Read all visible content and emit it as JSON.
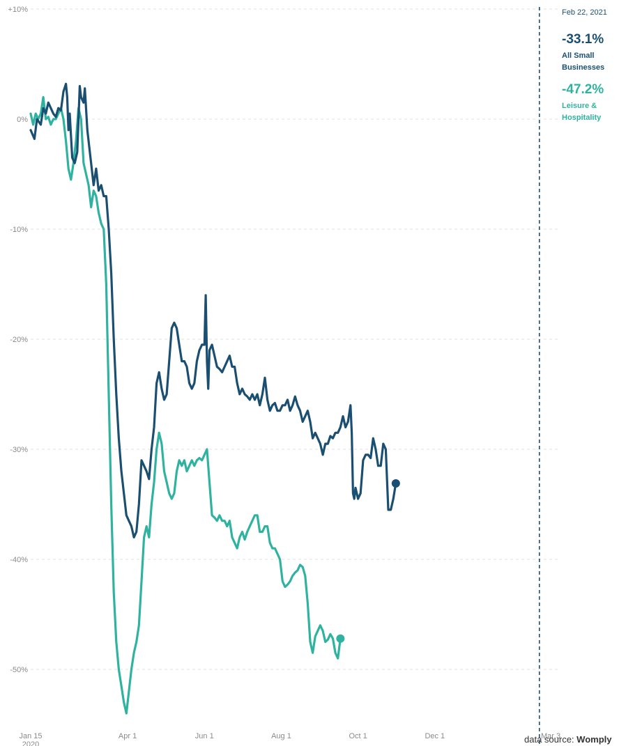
{
  "chart_data": {
    "type": "line",
    "y_ticks": [
      "+10%",
      "0%",
      "-10%",
      "-20%",
      "-30%",
      "-40%",
      "-50%"
    ],
    "y_tick_values": [
      10,
      0,
      -10,
      -20,
      -30,
      -40,
      -50
    ],
    "ylim": [
      -55,
      10
    ],
    "x_ticks": [
      "Jan 15",
      "Apr 1",
      "Jun 1",
      "Aug 1",
      "Oct 1",
      "Dec 1",
      "Mar 3"
    ],
    "x_tick_days": [
      0,
      77,
      138,
      199,
      260,
      321,
      413
    ],
    "x_tick_sub": {
      "Jan 15": "2020"
    },
    "xlim_days": [
      0,
      413
    ],
    "x_start_date": "2020-01-15",
    "grid": true,
    "marker": {
      "label": "Feb 22, 2021",
      "day": 404
    },
    "series": [
      {
        "name": "All Small Businesses",
        "color": "#1b4f72",
        "final_value_label": "-33.1%",
        "points": [
          [
            0,
            -1
          ],
          [
            3,
            -1.8
          ],
          [
            5,
            0
          ],
          [
            8,
            -0.5
          ],
          [
            10,
            1
          ],
          [
            12,
            0.5
          ],
          [
            14,
            1.5
          ],
          [
            16,
            1
          ],
          [
            18,
            0.5
          ],
          [
            20,
            0.2
          ],
          [
            22,
            1
          ],
          [
            24,
            0.8
          ],
          [
            26,
            2.5
          ],
          [
            28,
            3.2
          ],
          [
            29,
            2
          ],
          [
            30,
            -1
          ],
          [
            31,
            0.5
          ],
          [
            33,
            -3.5
          ],
          [
            35,
            -4
          ],
          [
            37,
            -3
          ],
          [
            39,
            3
          ],
          [
            40,
            2
          ],
          [
            42,
            1.5
          ],
          [
            43,
            2.8
          ],
          [
            45,
            -1
          ],
          [
            47,
            -3
          ],
          [
            48,
            -4
          ],
          [
            50,
            -6
          ],
          [
            52,
            -4.5
          ],
          [
            54,
            -6.5
          ],
          [
            56,
            -6
          ],
          [
            58,
            -7
          ],
          [
            60,
            -7
          ],
          [
            62,
            -10
          ],
          [
            64,
            -14
          ],
          [
            66,
            -20
          ],
          [
            68,
            -25
          ],
          [
            70,
            -29
          ],
          [
            72,
            -32
          ],
          [
            74,
            -34
          ],
          [
            76,
            -36
          ],
          [
            78,
            -36.5
          ],
          [
            80,
            -37
          ],
          [
            82,
            -38
          ],
          [
            84,
            -37.5
          ],
          [
            86,
            -35
          ],
          [
            88,
            -31
          ],
          [
            90,
            -31.5
          ],
          [
            92,
            -32
          ],
          [
            94,
            -32.7
          ],
          [
            96,
            -30
          ],
          [
            98,
            -28
          ],
          [
            100,
            -24
          ],
          [
            102,
            -23
          ],
          [
            104,
            -24.5
          ],
          [
            106,
            -25.5
          ],
          [
            108,
            -25
          ],
          [
            110,
            -22
          ],
          [
            112,
            -19
          ],
          [
            114,
            -18.5
          ],
          [
            116,
            -19
          ],
          [
            118,
            -20.5
          ],
          [
            120,
            -22
          ],
          [
            122,
            -22
          ],
          [
            124,
            -22.5
          ],
          [
            126,
            -24
          ],
          [
            128,
            -24.5
          ],
          [
            130,
            -24
          ],
          [
            132,
            -22
          ],
          [
            134,
            -21
          ],
          [
            136,
            -20.5
          ],
          [
            138,
            -20.5
          ],
          [
            139,
            -16
          ],
          [
            140,
            -22
          ],
          [
            141,
            -24.5
          ],
          [
            142,
            -21
          ],
          [
            144,
            -20.5
          ],
          [
            146,
            -21.5
          ],
          [
            148,
            -22.5
          ],
          [
            150,
            -22.7
          ],
          [
            152,
            -23
          ],
          [
            154,
            -22.5
          ],
          [
            156,
            -22
          ],
          [
            158,
            -21.5
          ],
          [
            160,
            -22.5
          ],
          [
            162,
            -22.5
          ],
          [
            164,
            -24
          ],
          [
            166,
            -25
          ],
          [
            168,
            -24.5
          ],
          [
            170,
            -25
          ],
          [
            172,
            -25.2
          ],
          [
            174,
            -25.5
          ],
          [
            176,
            -25
          ],
          [
            178,
            -25.5
          ],
          [
            180,
            -25
          ],
          [
            182,
            -26
          ],
          [
            184,
            -25
          ],
          [
            186,
            -23.5
          ],
          [
            188,
            -25.5
          ],
          [
            190,
            -26.5
          ],
          [
            192,
            -26
          ],
          [
            194,
            -25.8
          ],
          [
            196,
            -26.5
          ],
          [
            198,
            -26.5
          ],
          [
            200,
            -26
          ],
          [
            202,
            -26
          ],
          [
            204,
            -25.5
          ],
          [
            206,
            -26.5
          ],
          [
            208,
            -26
          ],
          [
            210,
            -25.2
          ],
          [
            212,
            -26
          ],
          [
            214,
            -26.5
          ],
          [
            216,
            -27.5
          ],
          [
            218,
            -27
          ],
          [
            220,
            -26.5
          ],
          [
            222,
            -27.5
          ],
          [
            224,
            -29
          ],
          [
            226,
            -28.5
          ],
          [
            228,
            -29
          ],
          [
            230,
            -29.5
          ],
          [
            232,
            -30.5
          ],
          [
            234,
            -29.5
          ],
          [
            236,
            -29.5
          ],
          [
            238,
            -28.8
          ],
          [
            240,
            -29
          ],
          [
            242,
            -28.5
          ],
          [
            244,
            -28.5
          ],
          [
            246,
            -28
          ],
          [
            248,
            -27
          ],
          [
            250,
            -28
          ],
          [
            252,
            -27.5
          ],
          [
            254,
            -26
          ],
          [
            255,
            -28.5
          ],
          [
            256,
            -34
          ],
          [
            257,
            -34.5
          ],
          [
            258,
            -33.5
          ],
          [
            260,
            -34.5
          ],
          [
            262,
            -34
          ],
          [
            264,
            -31
          ],
          [
            266,
            -30.5
          ],
          [
            268,
            -30.5
          ],
          [
            270,
            -30.8
          ],
          [
            272,
            -29
          ],
          [
            274,
            -30
          ],
          [
            276,
            -31.5
          ],
          [
            278,
            -31.5
          ],
          [
            280,
            -29.5
          ],
          [
            282,
            -30
          ],
          [
            284,
            -35.5
          ],
          [
            286,
            -35.5
          ],
          [
            288,
            -34.5
          ],
          [
            290,
            -33.1
          ]
        ]
      },
      {
        "name": "Leisure & Hospitality",
        "color": "#2fb3a0",
        "final_value_label": "-47.2%",
        "points": [
          [
            0,
            0.5
          ],
          [
            2,
            -0.5
          ],
          [
            4,
            0.5
          ],
          [
            6,
            0
          ],
          [
            8,
            0.5
          ],
          [
            10,
            2
          ],
          [
            12,
            0
          ],
          [
            14,
            0.2
          ],
          [
            16,
            -0.5
          ],
          [
            18,
            0
          ],
          [
            20,
            0
          ],
          [
            22,
            0.5
          ],
          [
            24,
            1
          ],
          [
            26,
            0
          ],
          [
            28,
            -2
          ],
          [
            30,
            -4.5
          ],
          [
            32,
            -5.5
          ],
          [
            34,
            -4
          ],
          [
            36,
            -2
          ],
          [
            38,
            1
          ],
          [
            40,
            0
          ],
          [
            42,
            -4
          ],
          [
            44,
            -5
          ],
          [
            46,
            -6
          ],
          [
            48,
            -8
          ],
          [
            50,
            -6.5
          ],
          [
            52,
            -7
          ],
          [
            54,
            -8.5
          ],
          [
            56,
            -9.5
          ],
          [
            58,
            -10
          ],
          [
            60,
            -15
          ],
          [
            62,
            -25
          ],
          [
            64,
            -35
          ],
          [
            66,
            -43
          ],
          [
            68,
            -47.5
          ],
          [
            70,
            -50
          ],
          [
            72,
            -51.5
          ],
          [
            74,
            -53
          ],
          [
            76,
            -54
          ],
          [
            78,
            -52
          ],
          [
            80,
            -50
          ],
          [
            82,
            -48.5
          ],
          [
            84,
            -47.5
          ],
          [
            86,
            -46
          ],
          [
            88,
            -42
          ],
          [
            90,
            -38
          ],
          [
            92,
            -37
          ],
          [
            94,
            -38
          ],
          [
            96,
            -35
          ],
          [
            98,
            -33
          ],
          [
            100,
            -30
          ],
          [
            102,
            -28.5
          ],
          [
            104,
            -29.5
          ],
          [
            106,
            -32
          ],
          [
            108,
            -33
          ],
          [
            110,
            -34
          ],
          [
            112,
            -34.5
          ],
          [
            114,
            -34
          ],
          [
            116,
            -32
          ],
          [
            118,
            -31
          ],
          [
            120,
            -31.5
          ],
          [
            122,
            -31
          ],
          [
            124,
            -32
          ],
          [
            126,
            -31.5
          ],
          [
            128,
            -31
          ],
          [
            130,
            -31.5
          ],
          [
            132,
            -31
          ],
          [
            134,
            -30.8
          ],
          [
            136,
            -31
          ],
          [
            138,
            -30.5
          ],
          [
            140,
            -30
          ],
          [
            142,
            -33
          ],
          [
            144,
            -36
          ],
          [
            146,
            -36.2
          ],
          [
            148,
            -36.5
          ],
          [
            150,
            -36
          ],
          [
            152,
            -36.5
          ],
          [
            154,
            -36.5
          ],
          [
            156,
            -37
          ],
          [
            158,
            -36.5
          ],
          [
            160,
            -38
          ],
          [
            162,
            -38.5
          ],
          [
            164,
            -39
          ],
          [
            166,
            -38
          ],
          [
            168,
            -37.5
          ],
          [
            170,
            -38.2
          ],
          [
            172,
            -37.5
          ],
          [
            174,
            -37
          ],
          [
            176,
            -36.5
          ],
          [
            178,
            -36
          ],
          [
            180,
            -36
          ],
          [
            182,
            -37.5
          ],
          [
            184,
            -37.5
          ],
          [
            186,
            -37
          ],
          [
            188,
            -37
          ],
          [
            190,
            -38.5
          ],
          [
            192,
            -39
          ],
          [
            194,
            -39
          ],
          [
            196,
            -39.5
          ],
          [
            198,
            -40
          ],
          [
            200,
            -42
          ],
          [
            202,
            -42.5
          ],
          [
            204,
            -42.3
          ],
          [
            206,
            -42
          ],
          [
            208,
            -41.5
          ],
          [
            210,
            -41.2
          ],
          [
            212,
            -41
          ],
          [
            214,
            -40.5
          ],
          [
            216,
            -40.7
          ],
          [
            218,
            -41.5
          ],
          [
            220,
            -44
          ],
          [
            222,
            -47.5
          ],
          [
            224,
            -48.5
          ],
          [
            226,
            -47
          ],
          [
            228,
            -46.5
          ],
          [
            230,
            -46
          ],
          [
            232,
            -46.5
          ],
          [
            234,
            -47.5
          ],
          [
            236,
            -47.3
          ],
          [
            238,
            -46.8
          ],
          [
            240,
            -47.2
          ],
          [
            242,
            -48.5
          ],
          [
            244,
            -49
          ],
          [
            246,
            -47.2
          ]
        ]
      }
    ]
  },
  "source": {
    "prefix": "data source: ",
    "name": "Womply"
  }
}
